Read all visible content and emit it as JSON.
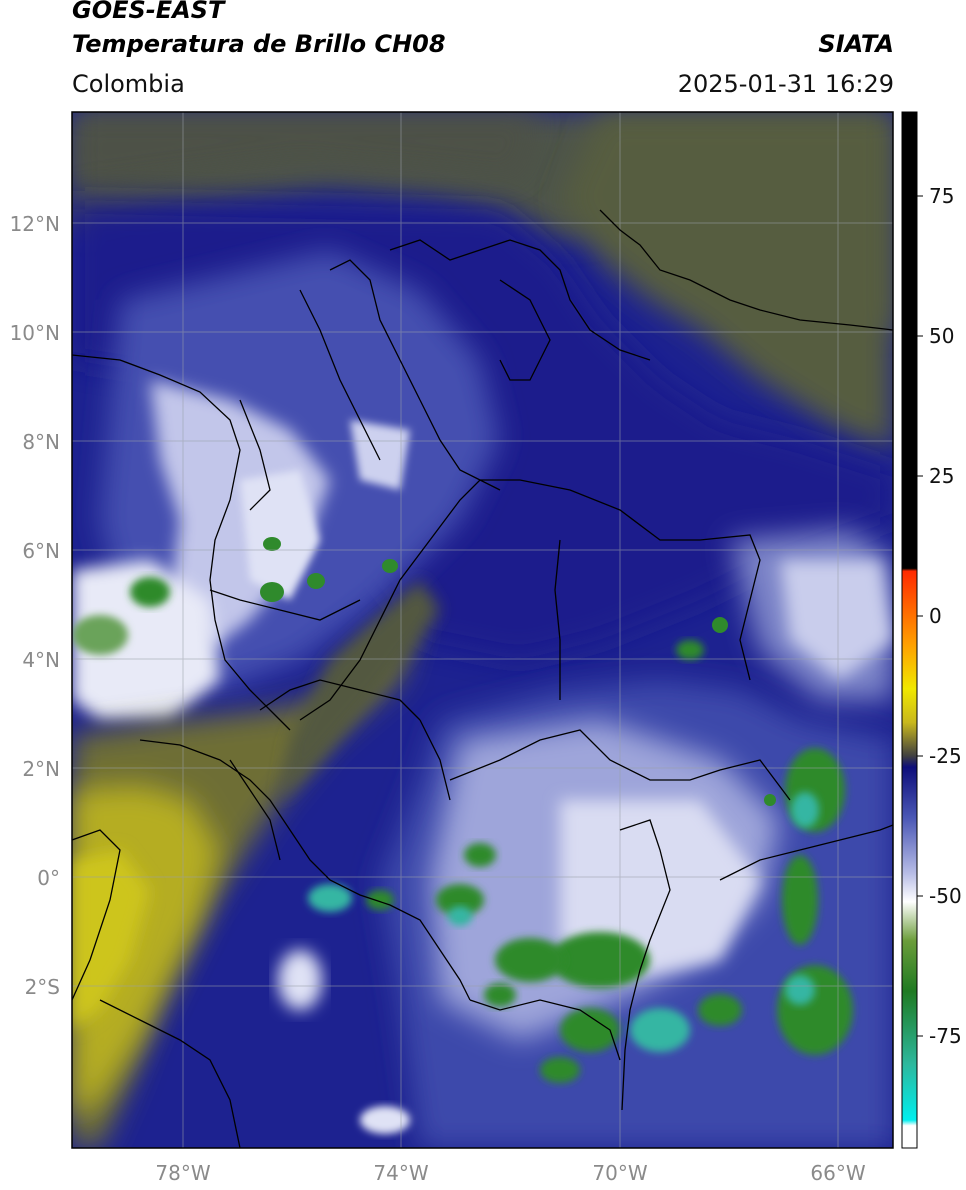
{
  "header": {
    "satellite": "GOES-EAST",
    "product": "Temperatura de Brillo CH08",
    "brand": "SIATA",
    "region": "Colombia",
    "datetime": "2025-01-31 16:29"
  },
  "map": {
    "lat_labels": [
      "12°N",
      "10°N",
      "8°N",
      "6°N",
      "4°N",
      "2°N",
      "0°",
      "2°S"
    ],
    "lon_labels": [
      "78°W",
      "74°W",
      "70°W",
      "66°W"
    ],
    "lon_range": [
      -80,
      -65
    ],
    "lat_range": [
      -5,
      14
    ],
    "colors": {
      "ocean_olive": "#565d3e",
      "navy": "#1b1f8a",
      "mid_blue": "#4a57b5",
      "lavender": "#aeb4de",
      "white": "#f3f4fa",
      "green": "#2f8a2c",
      "teal": "#36b6a3",
      "yellow": "#c9c11b",
      "border": "#000000"
    }
  },
  "colorbar": {
    "ticks": [
      "75",
      "50",
      "25",
      "0",
      "-25",
      "-50",
      "-75"
    ],
    "tick_values": [
      75,
      50,
      25,
      0,
      -25,
      -50,
      -75
    ],
    "range": [
      -95,
      90
    ],
    "stops": [
      {
        "v": 90,
        "c": "#000000"
      },
      {
        "v": 8.5,
        "c": "#000000"
      },
      {
        "v": 8,
        "c": "#ff2a00"
      },
      {
        "v": -5,
        "c": "#ff9f00"
      },
      {
        "v": -13,
        "c": "#f0e800"
      },
      {
        "v": -19,
        "c": "#c9b81c"
      },
      {
        "v": -25,
        "c": "#404040"
      },
      {
        "v": -27,
        "c": "#0e0e7a"
      },
      {
        "v": -36,
        "c": "#4a57b5"
      },
      {
        "v": -46,
        "c": "#b8bde6"
      },
      {
        "v": -51,
        "c": "#ffffff"
      },
      {
        "v": -58,
        "c": "#6b9d3a"
      },
      {
        "v": -67,
        "c": "#1f7a22"
      },
      {
        "v": -80,
        "c": "#2db89d"
      },
      {
        "v": -90,
        "c": "#00eeee"
      },
      {
        "v": -91,
        "c": "#ffffff"
      },
      {
        "v": -95,
        "c": "#ffffff"
      }
    ]
  }
}
